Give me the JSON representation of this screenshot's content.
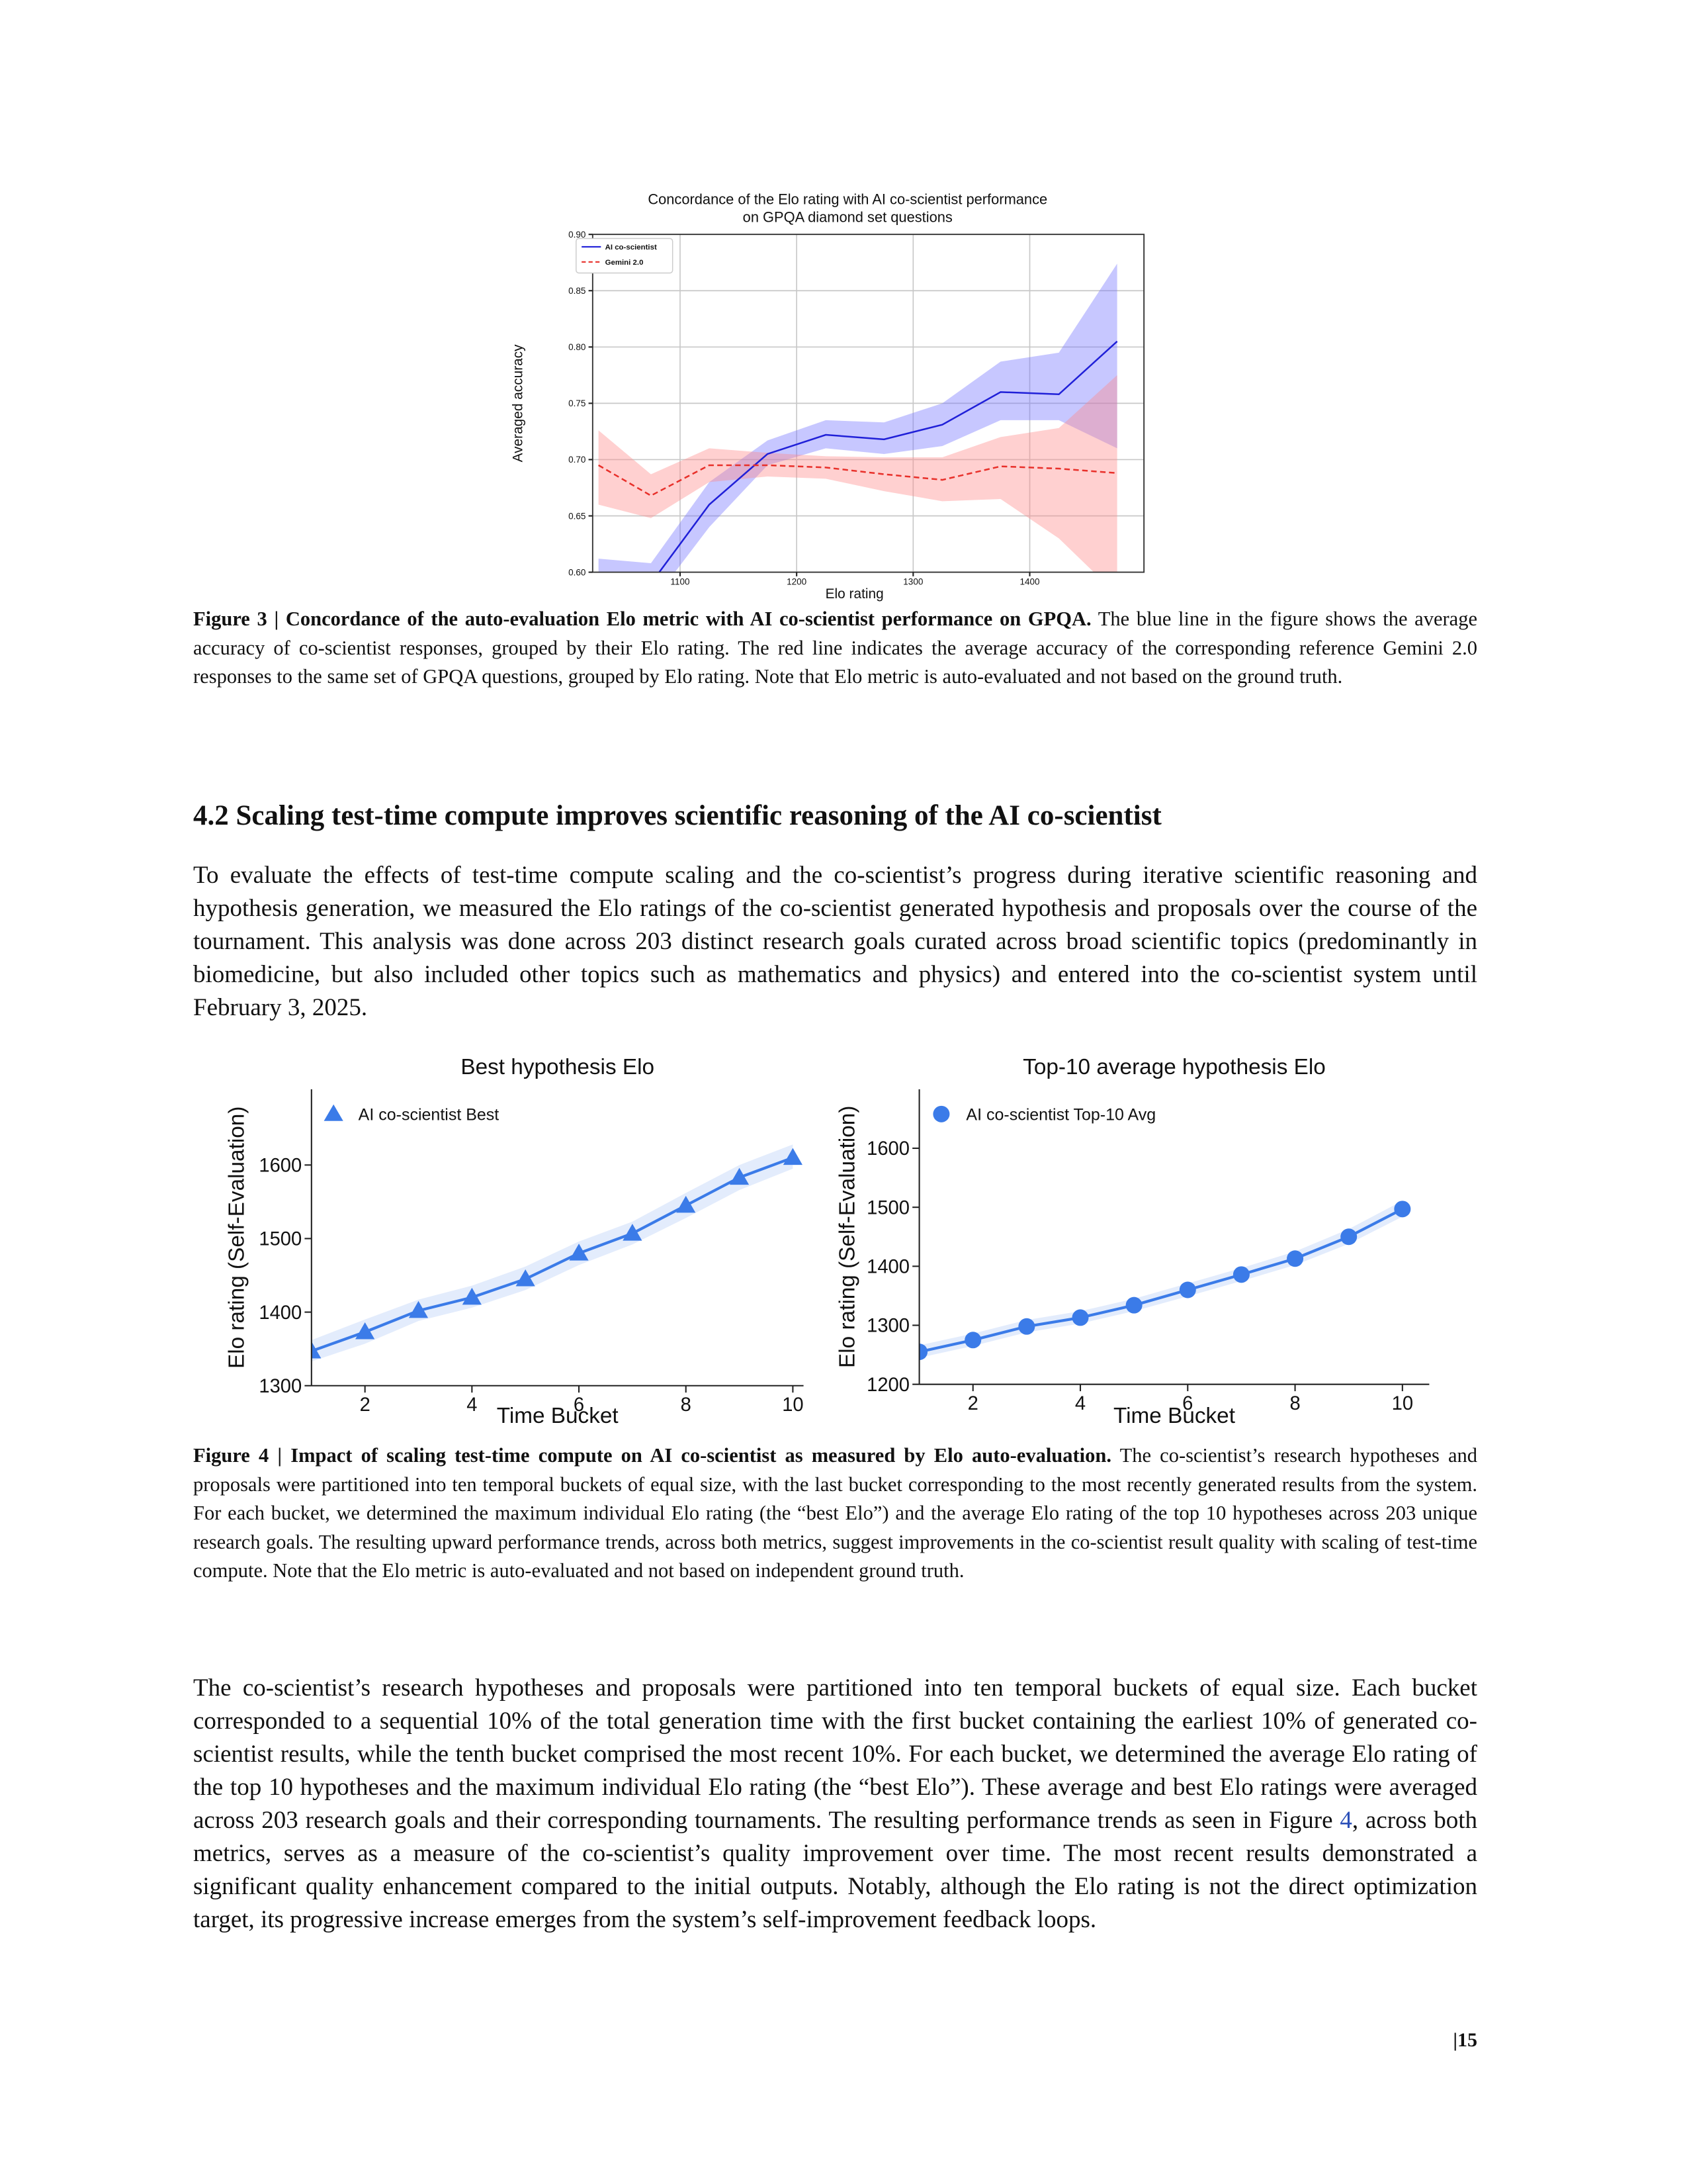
{
  "chart_data": [
    {
      "type": "line",
      "title": [
        "Concordance of the Elo rating with AI co-scientist performance",
        "on GPQA diamond set questions"
      ],
      "x_label": "Elo rating",
      "y_label": "Averaged accuracy",
      "x": [
        1030,
        1075,
        1125,
        1175,
        1225,
        1275,
        1325,
        1375,
        1425,
        1475
      ],
      "xlim": [
        1025,
        1498
      ],
      "ylim": [
        0.6,
        0.9
      ],
      "xticks": [
        1100,
        1200,
        1300,
        1400
      ],
      "yticks": [
        {
          "value": 0.6,
          "label": "0.60"
        },
        {
          "value": 0.65,
          "label": "0.65"
        },
        {
          "value": 0.7,
          "label": "0.70"
        },
        {
          "value": 0.75,
          "label": "0.75"
        },
        {
          "value": 0.8,
          "label": "0.80"
        },
        {
          "value": 0.85,
          "label": "0.85"
        },
        {
          "value": 0.9,
          "label": "0.90"
        }
      ],
      "grid": true,
      "legend": "upper left",
      "series": [
        {
          "name": "AI co-scientist",
          "color": "#2020d8",
          "band_color": "#7272ff",
          "dashed": false,
          "values": [
            0.585,
            0.59,
            0.66,
            0.705,
            0.722,
            0.718,
            0.731,
            0.76,
            0.758,
            0.805
          ],
          "lower": [
            0.558,
            0.572,
            0.64,
            0.695,
            0.71,
            0.705,
            0.712,
            0.735,
            0.735,
            0.71
          ],
          "upper": [
            0.612,
            0.608,
            0.68,
            0.717,
            0.735,
            0.733,
            0.75,
            0.787,
            0.795,
            0.874
          ]
        },
        {
          "name": "Gemini 2.0",
          "color": "#e8302a",
          "band_color": "#ff8a8a",
          "dashed": true,
          "values": [
            0.695,
            0.668,
            0.695,
            0.695,
            0.693,
            0.687,
            0.682,
            0.694,
            0.692,
            0.688
          ],
          "lower": [
            0.66,
            0.648,
            0.68,
            0.685,
            0.683,
            0.672,
            0.663,
            0.665,
            0.63,
            0.58
          ],
          "upper": [
            0.726,
            0.687,
            0.71,
            0.706,
            0.703,
            0.702,
            0.702,
            0.72,
            0.728,
            0.775
          ]
        }
      ]
    },
    {
      "type": "line",
      "title": [
        "Best hypothesis Elo"
      ],
      "x_label": "Time Bucket",
      "y_label": "Elo rating (Self-Evaluation)",
      "x": [
        1,
        2,
        3,
        4,
        5,
        6,
        7,
        8,
        9,
        10
      ],
      "xlim": [
        1,
        10.2
      ],
      "ylim": [
        1300,
        1703
      ],
      "xticks": [
        2,
        4,
        6,
        8,
        10
      ],
      "yticks": [
        1300,
        1400,
        1500,
        1600
      ],
      "grid": false,
      "legend": "upper left",
      "series": [
        {
          "name": "AI co-scientist Best",
          "color": "#3b7be8",
          "band_color": "#3b7be8",
          "marker": "triangle",
          "dashed": false,
          "values": [
            1347,
            1373,
            1402,
            1420,
            1445,
            1480,
            1507,
            1545,
            1583,
            1610
          ],
          "lower": [
            1333,
            1357,
            1388,
            1406,
            1430,
            1464,
            1492,
            1528,
            1566,
            1595
          ],
          "upper": [
            1362,
            1390,
            1417,
            1436,
            1462,
            1496,
            1523,
            1562,
            1600,
            1628
          ]
        }
      ]
    },
    {
      "type": "line",
      "title": [
        "Top-10 average hypothesis Elo"
      ],
      "x_label": "Time Bucket",
      "y_label": "Elo rating (Self-Evaluation)",
      "x": [
        1,
        2,
        3,
        4,
        5,
        6,
        7,
        8,
        9,
        10
      ],
      "xlim": [
        1,
        10.5
      ],
      "ylim": [
        1200,
        1700
      ],
      "xticks": [
        2,
        4,
        6,
        8,
        10
      ],
      "yticks": [
        1200,
        1300,
        1400,
        1500,
        1600
      ],
      "grid": false,
      "legend": "upper left",
      "series": [
        {
          "name": "AI co-scientist Top-10 Avg",
          "color": "#3b7be8",
          "band_color": "#3b7be8",
          "marker": "circle",
          "dashed": false,
          "values": [
            1255,
            1275,
            1298,
            1313,
            1334,
            1360,
            1386,
            1413,
            1450,
            1497
          ],
          "lower": [
            1245,
            1265,
            1288,
            1303,
            1324,
            1349,
            1375,
            1402,
            1438,
            1484
          ],
          "upper": [
            1266,
            1286,
            1309,
            1324,
            1345,
            1371,
            1397,
            1425,
            1463,
            1511
          ]
        }
      ]
    }
  ],
  "figure3_caption": {
    "label": "Figure 3 | Concordance of the auto-evaluation Elo metric with AI co-scientist performance on GPQA.",
    "text": "The blue line in the figure shows the average accuracy of co-scientist responses, grouped by their Elo rating. The red line indicates the average accuracy of the corresponding reference Gemini 2.0 responses to the same set of GPQA questions, grouped by Elo rating. Note that Elo metric is auto-evaluated and not based on the ground truth."
  },
  "section_heading": "4.2 Scaling test-time compute improves scientific reasoning of the AI co-scientist",
  "paragraph1": "To evaluate the effects of test-time compute scaling and the co-scientist’s progress during iterative scientific reasoning and hypothesis generation, we measured the Elo ratings of the co-scientist generated hypothesis and proposals over the course of the tournament. This analysis was done across 203 distinct research goals curated across broad scientific topics (predominantly in biomedicine, but also included other topics such as mathematics and physics) and entered into the co-scientist system until February 3, 2025.",
  "figure4_caption": {
    "label": "Figure 4 | Impact of scaling test-time compute on AI co-scientist as measured by Elo auto-evaluation.",
    "text": "The co-scientist’s research hypotheses and proposals were partitioned into ten temporal buckets of equal size, with the last bucket corresponding to the most recently generated results from the system. For each bucket, we determined the maximum individual Elo rating (the “best Elo”) and the average Elo rating of the top 10 hypotheses across 203 unique research goals. The resulting upward performance trends, across both metrics, suggest improvements in the co-scientist result quality with scaling of test-time compute. Note that the Elo metric is auto-evaluated and not based on independent ground truth."
  },
  "paragraph2": [
    "The co-scientist’s research hypotheses and proposals were partitioned into ten temporal buckets of equal size. Each bucket corresponded to a sequential 10% of the total generation time with the first bucket containing the earliest 10% of generated co-scientist results, while the tenth bucket comprised the most recent 10%. For each bucket, we determined the average Elo rating of the top 10 hypotheses and the maximum individual Elo rating (the “best Elo”). These average and best Elo ratings were averaged across 203 research goals and their corresponding tournaments. The resulting performance trends as seen in Figure ",
    "4",
    ", across both metrics, serves as a measure of the co-scientist’s quality improvement over time. The most recent results demonstrated a significant quality enhancement compared to the initial outputs. Notably, although the Elo rating is not the direct optimization target, its progressive increase emerges from the system’s self-improvement feedback loops."
  ],
  "page_number": "|15"
}
